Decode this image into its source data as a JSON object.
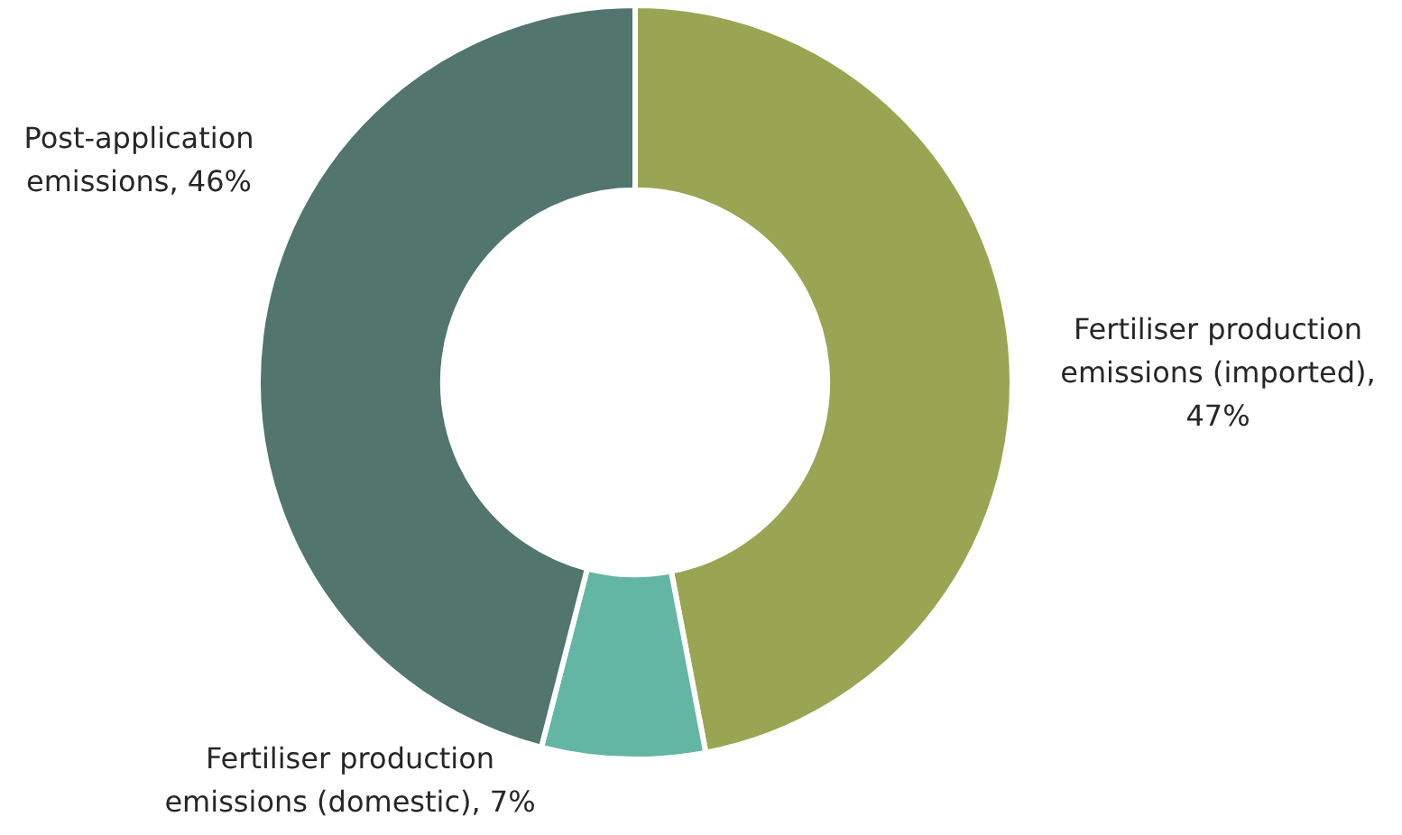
{
  "chart_data": {
    "type": "donut",
    "categories": [
      "Fertiliser production emissions (imported), 47%",
      "Fertiliser production emissions (domestic), 7%",
      "Post-application emissions, 46%"
    ],
    "values": [
      47,
      7,
      46
    ],
    "colors": [
      "#99a552",
      "#63b6a3",
      "#52756d"
    ]
  }
}
